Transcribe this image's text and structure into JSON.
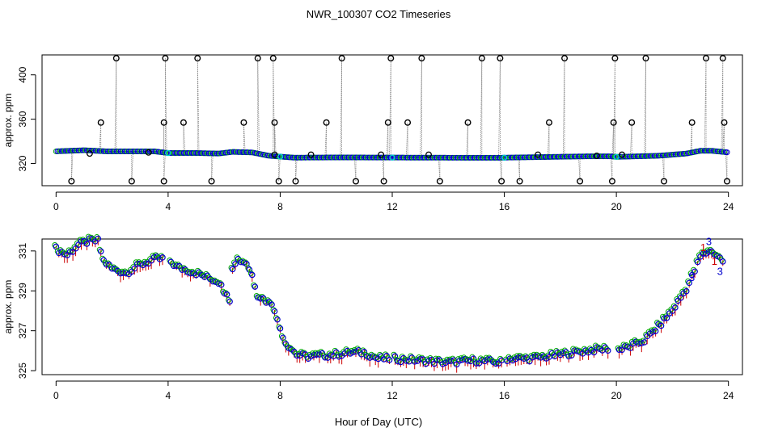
{
  "chart_data": {
    "type": "scatter",
    "title": "NWR_100307  CO2 Timeseries",
    "xlabel": "Hour of Day (UTC)",
    "panels": [
      {
        "id": "top",
        "ylabel": "approx. ppm",
        "xlim": [
          -0.5,
          24.5
        ],
        "ylim": [
          300,
          418
        ],
        "xticks": [
          0,
          4,
          8,
          12,
          16,
          20,
          24
        ],
        "yticks": [
          320,
          360,
          400
        ],
        "baseline": [
          [
            0,
            331
          ],
          [
            1,
            332
          ],
          [
            1.8,
            331
          ],
          [
            3.5,
            331
          ],
          [
            4,
            329.5
          ],
          [
            5,
            329.5
          ],
          [
            5.8,
            329
          ],
          [
            6.3,
            330.5
          ],
          [
            7,
            330
          ],
          [
            7.6,
            327
          ],
          [
            8.5,
            325.3
          ],
          [
            10,
            325.5
          ],
          [
            12,
            325.4
          ],
          [
            13,
            325.3
          ],
          [
            15.8,
            325.2
          ],
          [
            16,
            325.3
          ],
          [
            19,
            326.5
          ],
          [
            19.8,
            326.5
          ],
          [
            20,
            326
          ],
          [
            21.5,
            327
          ],
          [
            22.5,
            329
          ],
          [
            23,
            331.5
          ],
          [
            23.4,
            331.5
          ],
          [
            24,
            330
          ]
        ],
        "spike_high": [
          2.15,
          3.9,
          5.05,
          7.2,
          7.75,
          10.2,
          11.95,
          13.05,
          15.2,
          15.85,
          18.15,
          19.95,
          21.05,
          23.2,
          23.8
        ],
        "spike_mid": [
          1.6,
          3.85,
          4.55,
          6.7,
          7.8,
          9.65,
          11.85,
          12.55,
          14.7,
          17.6,
          19.9,
          20.55,
          22.7,
          23.85
        ],
        "spike_low": [
          0.55,
          2.7,
          3.85,
          5.55,
          7.95,
          8.55,
          10.7,
          11.7,
          13.7,
          15.9,
          16.55,
          18.7,
          19.85,
          21.7,
          23.95
        ],
        "small_dev": [
          [
            1.2,
            329
          ],
          [
            3.3,
            330
          ],
          [
            7.8,
            328
          ],
          [
            9.1,
            328
          ],
          [
            11.6,
            328
          ],
          [
            13.3,
            328
          ],
          [
            17.2,
            328
          ],
          [
            19.3,
            327
          ],
          [
            20.2,
            328
          ]
        ],
        "spike_high_value": 415,
        "spike_mid_value": 357,
        "spike_low_value": 304
      },
      {
        "id": "bottom",
        "ylabel": "approx. ppm",
        "xlim": [
          -0.5,
          24.5
        ],
        "ylim": [
          324.8,
          331.6
        ],
        "xticks": [
          0,
          4,
          8,
          12,
          16,
          20,
          24
        ],
        "yticks": [
          325,
          327,
          329,
          331
        ],
        "series": [
          [
            0,
            331.1
          ],
          [
            0.4,
            330.8
          ],
          [
            0.8,
            331.3
          ],
          [
            1.2,
            331.5
          ],
          [
            1.5,
            331.5
          ],
          [
            1.7,
            330.5
          ],
          [
            2,
            330.1
          ],
          [
            2.5,
            329.9
          ],
          [
            3,
            330.3
          ],
          [
            3.6,
            330.6
          ],
          [
            4,
            330.6
          ],
          [
            4.3,
            330.2
          ],
          [
            5,
            329.9
          ],
          [
            5.5,
            329.6
          ],
          [
            5.9,
            329.4
          ],
          [
            6.05,
            328.8
          ],
          [
            6.2,
            328.6
          ],
          [
            6.3,
            330.2
          ],
          [
            6.45,
            330.6
          ],
          [
            6.8,
            330.4
          ],
          [
            7,
            329.8
          ],
          [
            7.2,
            328.8
          ],
          [
            7.6,
            328.4
          ],
          [
            7.75,
            328.4
          ],
          [
            7.9,
            327.5
          ],
          [
            8.2,
            326.4
          ],
          [
            8.6,
            325.8
          ],
          [
            9,
            325.7
          ],
          [
            10,
            325.8
          ],
          [
            10.5,
            325.9
          ],
          [
            11,
            325.9
          ],
          [
            11.5,
            325.6
          ],
          [
            12,
            325.6
          ],
          [
            13,
            325.5
          ],
          [
            14,
            325.4
          ],
          [
            15,
            325.5
          ],
          [
            15.9,
            325.4
          ],
          [
            16,
            325.6
          ],
          [
            17,
            325.6
          ],
          [
            18,
            325.8
          ],
          [
            19,
            326
          ],
          [
            19.7,
            326.1
          ],
          [
            20,
            326
          ],
          [
            20.5,
            326.2
          ],
          [
            21,
            326.5
          ],
          [
            21.5,
            327.2
          ],
          [
            22,
            328
          ],
          [
            22.5,
            329.1
          ],
          [
            22.8,
            330
          ],
          [
            23,
            330.7
          ],
          [
            23.3,
            331
          ],
          [
            23.5,
            330.9
          ],
          [
            23.8,
            330.5
          ]
        ],
        "outliers": [
          [
            22.7,
            329.5
          ],
          [
            23.1,
            331
          ],
          [
            23.3,
            331.3
          ],
          [
            23.5,
            330.3
          ],
          [
            23.7,
            329.8
          ]
        ],
        "labels": [
          "3",
          "1"
        ],
        "colors": {
          "points": "#0000cc",
          "alt": "#00aa00",
          "bars": "#cc0000"
        }
      }
    ]
  }
}
